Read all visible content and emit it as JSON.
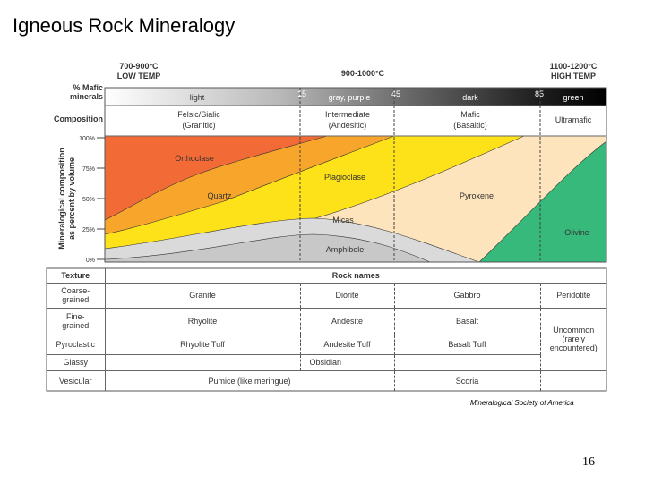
{
  "title": "Igneous Rock Mineralogy",
  "diagram": {
    "temperatures": [
      {
        "range": "700-900°C",
        "label": "LOW TEMP"
      },
      {
        "range": "900-1000°C"
      },
      {
        "range": "1100-1200°C",
        "label": "HIGH TEMP"
      }
    ],
    "mafic_header": "% Mafic minerals",
    "mafic_bar": {
      "segments": [
        "light",
        "gray, purple",
        "dark",
        "green"
      ],
      "boundaries": [
        "15",
        "45",
        "85"
      ]
    },
    "composition_header": "Composition",
    "compositions": [
      {
        "name": "Felsic/Sialic",
        "group": "(Granitic)"
      },
      {
        "name": "Intermediate",
        "group": "(Andesitic)"
      },
      {
        "name": "Mafic",
        "group": "(Basaltic)"
      },
      {
        "name": "Ultramafic"
      }
    ],
    "y_axis_label": [
      "Mineralogical composition",
      "as percent by volume"
    ],
    "y_ticks": [
      "100%",
      "75%",
      "50%",
      "25%",
      "0%"
    ],
    "minerals": [
      "Orthoclase",
      "Quartz",
      "Plagioclase",
      "Micas",
      "Amphibole",
      "Pyroxene",
      "Olivine"
    ]
  },
  "table": {
    "headers": [
      "Texture",
      "Rock names"
    ],
    "rows": [
      {
        "texture": "Coarse-grained",
        "rocks": [
          "Granite",
          "Diorite",
          "Gabbro",
          "Peridotite"
        ]
      },
      {
        "texture": "Fine-grained",
        "rocks": [
          "Rhyolite",
          "Andesite",
          "Basalt",
          "Uncommon (rarely encountered)"
        ]
      },
      {
        "texture": "Pyroclastic",
        "rocks": [
          "Rhyolite Tuff",
          "Andesite Tuff",
          "Basalt Tuff"
        ]
      },
      {
        "texture": "Glassy",
        "rocks": [
          "Obsidian"
        ]
      },
      {
        "texture": "Vesicular",
        "rocks": [
          "Pumice (like meringue)",
          "Scoria"
        ]
      }
    ]
  },
  "credit": "Mineralogical Society of America",
  "page_number": "16"
}
